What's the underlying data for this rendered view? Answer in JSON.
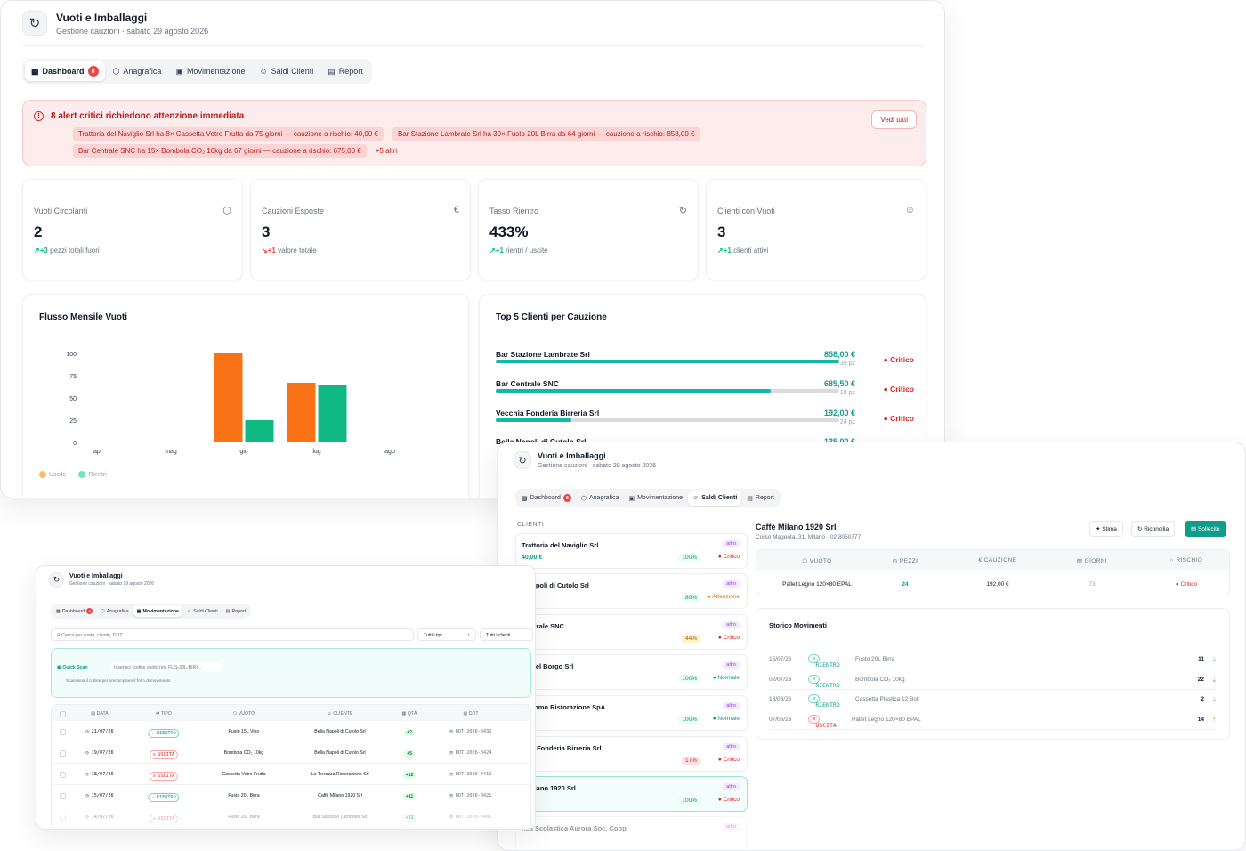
{
  "app": {
    "title": "Vuoti e Imballaggi",
    "subtitle": "Gestione cauzioni · sabato 29 agosto 2026"
  },
  "tabs": [
    {
      "label": "Dashboard",
      "icon": "bar-chart-icon",
      "badge": "8"
    },
    {
      "label": "Anagrafica",
      "icon": "package-icon"
    },
    {
      "label": "Movimentazione",
      "icon": "truck-icon"
    },
    {
      "label": "Saldi Clienti",
      "icon": "users-icon"
    },
    {
      "label": "Report",
      "icon": "file-icon"
    }
  ],
  "alert": {
    "title": "8 alert critici richiedono attenzione immediata",
    "items": [
      "Trattoria del Naviglio Srl ha 8× Cassetta Vetro Frutta da 75 giorni — cauzione a rischio: 40,00 €",
      "Bar Stazione Lambrate Srl ha 39× Fusto 20L Birra da 64 giorni — cauzione a rischio: 858,00 €",
      "Bar Centrale SNC ha 15× Bombola CO₂ 10kg da 67 giorni — cauzione a rischio: 675,00 €"
    ],
    "more": "+5 altri",
    "button": "Vedi tutti"
  },
  "kpis": [
    {
      "label": "Vuoti Circolanti",
      "icon": "package-icon",
      "value": "2",
      "delta": "+3",
      "direction": "up",
      "note": "pezzi totali fuori"
    },
    {
      "label": "Cauzioni Esposte",
      "icon": "euro-icon",
      "value": "3",
      "delta": "+1",
      "direction": "down",
      "note": "valore totale"
    },
    {
      "label": "Tasso Rientro",
      "icon": "refresh-icon",
      "value": "433%",
      "delta": "+1",
      "direction": "up",
      "note": "rientri / uscite"
    },
    {
      "label": "Clienti con Vuoti",
      "icon": "users-icon",
      "value": "3",
      "delta": "+1",
      "direction": "up",
      "note": "clienti attivi"
    }
  ],
  "flow": {
    "title": "Flusso Mensile Vuoti",
    "legend": [
      "Uscite",
      "Rientri"
    ]
  },
  "chart_data": {
    "type": "bar",
    "title": "Flusso Mensile Vuoti",
    "categories": [
      "apr",
      "mag",
      "giu",
      "lug",
      "ago"
    ],
    "series": [
      {
        "name": "Uscite",
        "color": "#f97316",
        "values": [
          0,
          0,
          100,
          67,
          0
        ]
      },
      {
        "name": "Rientri",
        "color": "#10b981",
        "values": [
          0,
          0,
          25,
          65,
          0
        ]
      }
    ],
    "yticks": [
      0,
      25,
      50,
      75,
      100
    ],
    "ylim": [
      0,
      100
    ],
    "legend": "bottom-left"
  },
  "top5": {
    "title": "Top 5 Clienti per Cauzione",
    "rows": [
      {
        "name": "Bar Stazione Lambrate Srl",
        "amount": "858,00 €",
        "pieces": "39 pz",
        "fill": 1.0,
        "status": "Critico"
      },
      {
        "name": "Bar Centrale SNC",
        "amount": "685,50 €",
        "pieces": "18 pz",
        "fill": 0.8,
        "status": "Critico"
      },
      {
        "name": "Vecchia Fonderia Birreria Srl",
        "amount": "192,00 €",
        "pieces": "24 pz",
        "fill": 0.22,
        "status": "Critico"
      },
      {
        "name": "Bella Napoli di Cutolo Srl",
        "amount": "135,00 €"
      }
    ]
  },
  "saldi": {
    "list_label": "CLIENTI",
    "clients": [
      {
        "name": "Trattoria del Naviglio Srl",
        "amount": "40,00 €",
        "tag": "altro",
        "pct": "100%",
        "status": "Critico"
      },
      {
        "name": "a Napoli di Cutolo Srl",
        "amount": "0 €",
        "tag": "altro",
        "pct": "80%",
        "status": "Attenzione"
      },
      {
        "name": "Centrale SNC",
        "amount": "50 €",
        "tag": "altro",
        "pct": "44%",
        "status": "Critico"
      },
      {
        "name": "ria del Borgo Srl",
        "amount": "€",
        "tag": "altro",
        "pct": "100%",
        "status": "Normale"
      },
      {
        "name": "l Duomo Ristorazione SpA",
        "amount": "€",
        "tag": "altro",
        "pct": "100%",
        "status": "Normale"
      },
      {
        "name": "chia Fonderia Birreria Srl",
        "amount": "0 €",
        "tag": "altro",
        "pct": "17%",
        "status": "Critico"
      },
      {
        "name": "è Milano 1920 Srl",
        "amount": "0 €",
        "tag": "altro",
        "pct": "100%",
        "status": "Critico"
      },
      {
        "name": "nsa Scolastica Aurora Soc. Coop.",
        "amount": "",
        "tag": "altro",
        "pct": "",
        "status": ""
      }
    ],
    "detail": {
      "name": "Caffè Milano 1920 Srl",
      "address": "Corso Magenta, 31, Milano · 02 8050777",
      "buttons": [
        "Stima",
        "Riconcilia",
        "Sollecito"
      ],
      "columns": [
        "VUOTO",
        "PEZZI",
        "CAUZIONE",
        "GIORNI",
        "RISCHIO"
      ],
      "row": {
        "vuoto": "Pallet Legno 120×80 EPAL",
        "pezzi": "24",
        "cauzione": "192,00 €",
        "giorni": "73",
        "rischio": "Critico"
      }
    },
    "storico": {
      "title": "Storico Movimenti",
      "rows": [
        {
          "date": "15/07/26",
          "type": "RIENTRO",
          "item": "Fusto 20L Birra",
          "qty": "11"
        },
        {
          "date": "02/07/26",
          "type": "RIENTRO",
          "item": "Bombola CO₂ 10kg",
          "qty": "22"
        },
        {
          "date": "18/06/26",
          "type": "RIENTRO",
          "item": "Cassetta Plastica 12 Bot.",
          "qty": "2"
        },
        {
          "date": "07/06/26",
          "type": "USCITA",
          "item": "Pallet Legno 120×80 EPAL",
          "qty": "14"
        }
      ]
    }
  },
  "movimentazione": {
    "search_placeholder": "Cerca per vuoto, cliente, DDT...",
    "type_filter": "Tutti i tipi",
    "client_filter": "Tutti i clienti",
    "quick_scan_label": "Quick Scan",
    "quick_scan_placeholder": "Inserisci codice vuoto (es. FUS-30L-BIR)...",
    "quick_scan_hint": "Scansiona il codice per precompilare il form di movimento",
    "columns": [
      "DATA",
      "TIPO",
      "VUOTO",
      "CLIENTE",
      "QTÀ",
      "DDT"
    ],
    "rows": [
      {
        "date": "21/07/26",
        "type": "RIENTRO",
        "item": "Fusto 15L Vino",
        "client": "Bella Napoli di Cutolo Srl",
        "qty": "+2",
        "ddt": "DDT-2026-0432"
      },
      {
        "date": "19/07/26",
        "type": "USCITA",
        "item": "Bombola CO₂ 10kg",
        "client": "Bella Napoli di Cutolo Srl",
        "qty": "+5",
        "ddt": "DDT-2026-0424"
      },
      {
        "date": "18/07/26",
        "type": "USCITA",
        "item": "Cassetta Vetro Frutta",
        "client": "La Terrazza Ristorazione Srl",
        "qty": "+12",
        "ddt": "DDT-2026-0419"
      },
      {
        "date": "15/07/26",
        "type": "RIENTRO",
        "item": "Fusto 20L Birra",
        "client": "Caffè Milano 1920 Srl",
        "qty": "+11",
        "ddt": "DDT-2026-0421"
      },
      {
        "date": "14/07/26",
        "type": "USCITA",
        "item": "Fusto 20L Birra",
        "client": "Bar Stazione Lambrate Srl",
        "qty": "+23",
        "ddt": "DDT-2026-0401"
      }
    ]
  }
}
